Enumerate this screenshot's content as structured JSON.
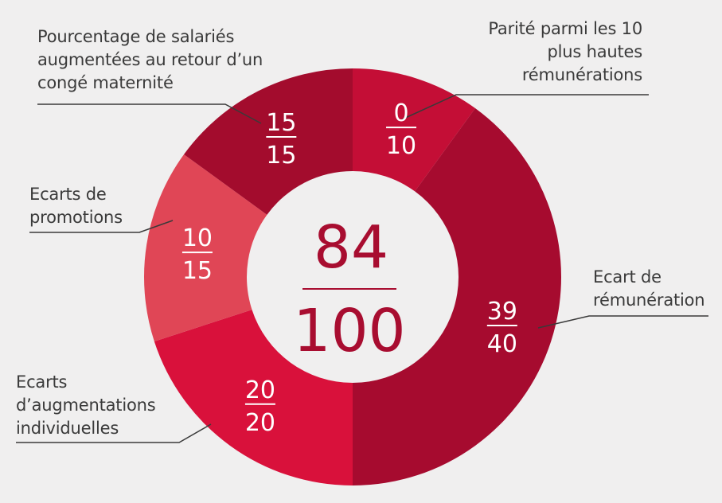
{
  "chart_data": {
    "type": "donut",
    "center": {
      "score": "84",
      "max": "100"
    },
    "segments": [
      {
        "label": [
          "Parité parmi les  10",
          "plus hautes",
          "rémunérations"
        ],
        "score": "0",
        "max": "10",
        "value": 10,
        "color": "#c40e36"
      },
      {
        "label": [
          "Ecart de",
          "rémunération"
        ],
        "score": "39",
        "max": "40",
        "value": 40,
        "color": "#a60b2f"
      },
      {
        "label": [
          "Ecarts",
          "d’augmentations",
          "individuelles"
        ],
        "score": "20",
        "max": "20",
        "value": 20,
        "color": "#d9113b"
      },
      {
        "label": [
          "Ecarts de",
          "promotions"
        ],
        "score": "10",
        "max": "15",
        "value": 15,
        "color": "#e04656"
      },
      {
        "label": [
          "Pourcentage de salariés",
          "augmentées au retour d’un",
          "congé maternité"
        ],
        "score": "15",
        "max": "15",
        "value": 15,
        "color": "#a30c2d"
      }
    ],
    "colors": {
      "text": "#3a3a3a",
      "center_text": "#a80d30",
      "center_fill": "#f0efef",
      "leader": "#3a3a3a"
    }
  }
}
